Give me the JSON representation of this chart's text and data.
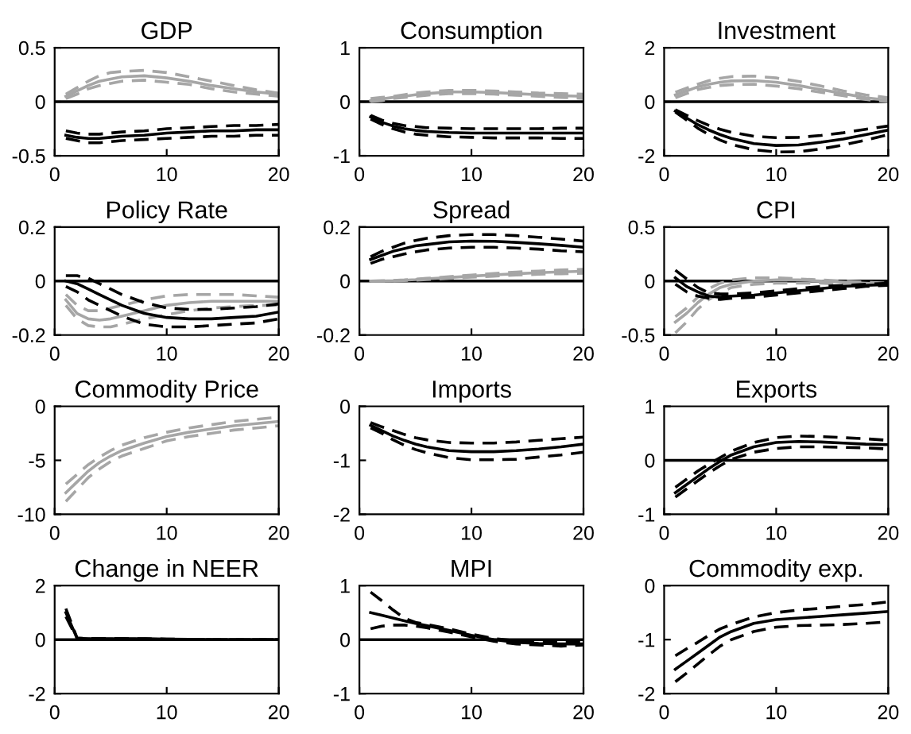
{
  "chart_data": [
    {
      "type": "line",
      "title": "GDP",
      "x": [
        1,
        2,
        3,
        4,
        5,
        6,
        8,
        10,
        12,
        14,
        16,
        18,
        20
      ],
      "xlim": [
        0,
        20
      ],
      "xticks": [
        0,
        10,
        20
      ],
      "ylim": [
        -0.5,
        0.5
      ],
      "yticks": [
        -0.5,
        0,
        0.5
      ],
      "ref_lines": [
        {
          "axis": "y",
          "value": 0,
          "color": "#000000"
        }
      ],
      "series": [
        {
          "color": "#a6a6a6",
          "line_style": "solid",
          "values": [
            0.05,
            0.1,
            0.15,
            0.19,
            0.21,
            0.23,
            0.24,
            0.22,
            0.19,
            0.15,
            0.12,
            0.09,
            0.07
          ]
        },
        {
          "color": "#a6a6a6",
          "line_style": "dashed",
          "values": [
            0.07,
            0.13,
            0.19,
            0.24,
            0.27,
            0.28,
            0.29,
            0.27,
            0.23,
            0.19,
            0.15,
            0.11,
            0.08
          ]
        },
        {
          "color": "#a6a6a6",
          "line_style": "dashed",
          "values": [
            0.03,
            0.07,
            0.12,
            0.15,
            0.17,
            0.19,
            0.2,
            0.18,
            0.16,
            0.12,
            0.09,
            0.07,
            0.05
          ]
        },
        {
          "color": "#000000",
          "line_style": "solid",
          "values": [
            -0.31,
            -0.33,
            -0.34,
            -0.34,
            -0.33,
            -0.32,
            -0.31,
            -0.29,
            -0.28,
            -0.27,
            -0.27,
            -0.26,
            -0.26
          ]
        },
        {
          "color": "#000000",
          "line_style": "dashed",
          "values": [
            -0.27,
            -0.29,
            -0.3,
            -0.3,
            -0.29,
            -0.28,
            -0.27,
            -0.25,
            -0.24,
            -0.23,
            -0.22,
            -0.22,
            -0.21
          ]
        },
        {
          "color": "#000000",
          "line_style": "dashed",
          "values": [
            -0.34,
            -0.36,
            -0.38,
            -0.38,
            -0.37,
            -0.36,
            -0.35,
            -0.34,
            -0.33,
            -0.32,
            -0.32,
            -0.31,
            -0.31
          ]
        }
      ]
    },
    {
      "type": "line",
      "title": "Consumption",
      "x": [
        1,
        2,
        3,
        4,
        5,
        6,
        8,
        10,
        12,
        14,
        16,
        18,
        20
      ],
      "xlim": [
        0,
        20
      ],
      "xticks": [
        0,
        10,
        20
      ],
      "ylim": [
        -1,
        1
      ],
      "yticks": [
        -1,
        0,
        1
      ],
      "ref_lines": [
        {
          "axis": "y",
          "value": 0,
          "color": "#000000"
        }
      ],
      "series": [
        {
          "color": "#a6a6a6",
          "line_style": "solid",
          "values": [
            0.02,
            0.05,
            0.08,
            0.1,
            0.13,
            0.15,
            0.18,
            0.18,
            0.17,
            0.15,
            0.13,
            0.11,
            0.1
          ]
        },
        {
          "color": "#a6a6a6",
          "line_style": "dashed",
          "values": [
            0.06,
            0.08,
            0.1,
            0.13,
            0.16,
            0.18,
            0.21,
            0.21,
            0.2,
            0.18,
            0.16,
            0.15,
            0.14
          ]
        },
        {
          "color": "#a6a6a6",
          "line_style": "dashed",
          "values": [
            0,
            0.02,
            0.06,
            0.08,
            0.1,
            0.12,
            0.15,
            0.15,
            0.14,
            0.12,
            0.1,
            0.08,
            0.06
          ]
        },
        {
          "color": "#000000",
          "line_style": "solid",
          "values": [
            -0.28,
            -0.38,
            -0.45,
            -0.5,
            -0.53,
            -0.55,
            -0.57,
            -0.58,
            -0.58,
            -0.58,
            -0.58,
            -0.58,
            -0.58
          ]
        },
        {
          "color": "#000000",
          "line_style": "dashed",
          "values": [
            -0.25,
            -0.34,
            -0.4,
            -0.44,
            -0.46,
            -0.48,
            -0.49,
            -0.5,
            -0.5,
            -0.5,
            -0.5,
            -0.49,
            -0.49
          ]
        },
        {
          "color": "#000000",
          "line_style": "dashed",
          "values": [
            -0.32,
            -0.42,
            -0.5,
            -0.56,
            -0.6,
            -0.62,
            -0.65,
            -0.66,
            -0.67,
            -0.67,
            -0.67,
            -0.68,
            -0.68
          ]
        }
      ]
    },
    {
      "type": "line",
      "title": "Investment",
      "x": [
        1,
        2,
        3,
        4,
        5,
        6,
        8,
        10,
        12,
        14,
        16,
        18,
        20
      ],
      "xlim": [
        0,
        20
      ],
      "xticks": [
        0,
        10,
        20
      ],
      "ylim": [
        -2,
        2
      ],
      "yticks": [
        -2,
        0,
        2
      ],
      "ref_lines": [
        {
          "axis": "y",
          "value": 0,
          "color": "#000000"
        }
      ],
      "series": [
        {
          "color": "#a6a6a6",
          "line_style": "solid",
          "values": [
            0.25,
            0.4,
            0.55,
            0.65,
            0.72,
            0.77,
            0.78,
            0.72,
            0.6,
            0.45,
            0.3,
            0.15,
            0.05
          ]
        },
        {
          "color": "#a6a6a6",
          "line_style": "dashed",
          "values": [
            0.35,
            0.5,
            0.65,
            0.78,
            0.87,
            0.93,
            0.95,
            0.88,
            0.75,
            0.58,
            0.4,
            0.25,
            0.15
          ]
        },
        {
          "color": "#a6a6a6",
          "line_style": "dashed",
          "values": [
            0.15,
            0.3,
            0.45,
            0.53,
            0.6,
            0.63,
            0.65,
            0.58,
            0.48,
            0.35,
            0.22,
            0.08,
            0
          ]
        },
        {
          "color": "#000000",
          "line_style": "solid",
          "values": [
            -0.35,
            -0.6,
            -0.85,
            -1.05,
            -1.22,
            -1.36,
            -1.55,
            -1.62,
            -1.6,
            -1.5,
            -1.38,
            -1.22,
            -1.05
          ]
        },
        {
          "color": "#000000",
          "line_style": "dashed",
          "values": [
            -0.3,
            -0.5,
            -0.7,
            -0.88,
            -1.02,
            -1.13,
            -1.28,
            -1.33,
            -1.32,
            -1.25,
            -1.15,
            -1.02,
            -0.9
          ]
        },
        {
          "color": "#000000",
          "line_style": "dashed",
          "values": [
            -0.38,
            -0.68,
            -0.98,
            -1.22,
            -1.42,
            -1.58,
            -1.78,
            -1.86,
            -1.85,
            -1.75,
            -1.6,
            -1.42,
            -1.22
          ]
        }
      ]
    },
    {
      "type": "line",
      "title": "Policy Rate",
      "x": [
        1,
        2,
        3,
        4,
        5,
        6,
        8,
        10,
        12,
        14,
        16,
        18,
        20
      ],
      "xlim": [
        0,
        20
      ],
      "xticks": [
        0,
        10,
        20
      ],
      "ylim": [
        -0.2,
        0.2
      ],
      "yticks": [
        -0.2,
        0,
        0.2
      ],
      "ref_lines": [
        {
          "axis": "y",
          "value": 0,
          "color": "#000000"
        }
      ],
      "series": [
        {
          "color": "#a6a6a6",
          "line_style": "solid",
          "values": [
            -0.07,
            -0.12,
            -0.14,
            -0.145,
            -0.14,
            -0.13,
            -0.11,
            -0.09,
            -0.08,
            -0.075,
            -0.075,
            -0.075,
            -0.075
          ]
        },
        {
          "color": "#a6a6a6",
          "line_style": "dashed",
          "values": [
            -0.05,
            -0.09,
            -0.11,
            -0.11,
            -0.1,
            -0.09,
            -0.07,
            -0.055,
            -0.05,
            -0.05,
            -0.05,
            -0.055,
            -0.06
          ]
        },
        {
          "color": "#a6a6a6",
          "line_style": "dashed",
          "values": [
            -0.09,
            -0.14,
            -0.165,
            -0.17,
            -0.17,
            -0.16,
            -0.14,
            -0.125,
            -0.11,
            -0.1,
            -0.095,
            -0.09,
            -0.09
          ]
        },
        {
          "color": "#000000",
          "line_style": "solid",
          "values": [
            0,
            -0.01,
            -0.03,
            -0.05,
            -0.07,
            -0.09,
            -0.12,
            -0.135,
            -0.14,
            -0.14,
            -0.135,
            -0.13,
            -0.115
          ]
        },
        {
          "color": "#000000",
          "line_style": "dashed",
          "values": [
            0.02,
            0.02,
            0.01,
            -0.01,
            -0.03,
            -0.05,
            -0.08,
            -0.1,
            -0.105,
            -0.105,
            -0.1,
            -0.095,
            -0.085
          ]
        },
        {
          "color": "#000000",
          "line_style": "dashed",
          "values": [
            -0.02,
            -0.04,
            -0.07,
            -0.09,
            -0.11,
            -0.13,
            -0.16,
            -0.17,
            -0.17,
            -0.165,
            -0.16,
            -0.155,
            -0.14
          ]
        }
      ]
    },
    {
      "type": "line",
      "title": "Spread",
      "x": [
        1,
        2,
        3,
        4,
        5,
        6,
        8,
        10,
        12,
        14,
        16,
        18,
        20
      ],
      "xlim": [
        0,
        20
      ],
      "xticks": [
        0,
        10,
        20
      ],
      "ylim": [
        -0.2,
        0.2
      ],
      "yticks": [
        -0.2,
        0,
        0.2
      ],
      "ref_lines": [
        {
          "axis": "y",
          "value": 0,
          "color": "#000000"
        }
      ],
      "series": [
        {
          "color": "#a6a6a6",
          "line_style": "solid",
          "values": [
            0,
            0,
            0.001,
            0.003,
            0.005,
            0.008,
            0.013,
            0.018,
            0.023,
            0.027,
            0.031,
            0.034,
            0.036
          ]
        },
        {
          "color": "#a6a6a6",
          "line_style": "dashed",
          "values": [
            0,
            0.001,
            0.002,
            0.004,
            0.007,
            0.01,
            0.016,
            0.022,
            0.028,
            0.033,
            0.037,
            0.041,
            0.043
          ]
        },
        {
          "color": "#a6a6a6",
          "line_style": "dashed",
          "values": [
            0,
            0,
            0,
            0.002,
            0.003,
            0.005,
            0.01,
            0.014,
            0.018,
            0.022,
            0.025,
            0.027,
            0.029
          ]
        },
        {
          "color": "#000000",
          "line_style": "solid",
          "values": [
            0.08,
            0.095,
            0.11,
            0.12,
            0.13,
            0.135,
            0.145,
            0.148,
            0.147,
            0.143,
            0.138,
            0.132,
            0.125
          ]
        },
        {
          "color": "#000000",
          "line_style": "dashed",
          "values": [
            0.09,
            0.11,
            0.125,
            0.14,
            0.15,
            0.158,
            0.168,
            0.172,
            0.172,
            0.168,
            0.162,
            0.155,
            0.148
          ]
        },
        {
          "color": "#000000",
          "line_style": "dashed",
          "values": [
            0.065,
            0.08,
            0.09,
            0.1,
            0.108,
            0.115,
            0.122,
            0.125,
            0.125,
            0.122,
            0.118,
            0.112,
            0.108
          ]
        }
      ]
    },
    {
      "type": "line",
      "title": "CPI",
      "x": [
        1,
        2,
        3,
        4,
        5,
        6,
        8,
        10,
        12,
        14,
        16,
        18,
        20
      ],
      "xlim": [
        0,
        20
      ],
      "xticks": [
        0,
        10,
        20
      ],
      "ylim": [
        -0.5,
        0.5
      ],
      "yticks": [
        -0.5,
        0,
        0.5
      ],
      "ref_lines": [
        {
          "axis": "y",
          "value": 0,
          "color": "#000000"
        }
      ],
      "series": [
        {
          "color": "#a6a6a6",
          "line_style": "solid",
          "values": [
            -0.38,
            -0.3,
            -0.2,
            -0.12,
            -0.06,
            -0.03,
            0,
            0.01,
            0.01,
            0,
            -0.01,
            -0.02,
            -0.03
          ]
        },
        {
          "color": "#a6a6a6",
          "line_style": "dashed",
          "values": [
            -0.33,
            -0.25,
            -0.15,
            -0.07,
            -0.02,
            0.01,
            0.03,
            0.03,
            0.02,
            0.01,
            0,
            -0.01,
            -0.02
          ]
        },
        {
          "color": "#a6a6a6",
          "line_style": "dashed",
          "values": [
            -0.48,
            -0.38,
            -0.26,
            -0.17,
            -0.11,
            -0.06,
            -0.03,
            -0.02,
            -0.02,
            -0.02,
            -0.03,
            -0.04,
            -0.04
          ]
        },
        {
          "color": "#000000",
          "line_style": "solid",
          "values": [
            0.03,
            -0.05,
            -0.1,
            -0.14,
            -0.15,
            -0.14,
            -0.13,
            -0.11,
            -0.09,
            -0.07,
            -0.05,
            -0.04,
            -0.03
          ]
        },
        {
          "color": "#000000",
          "line_style": "dashed",
          "values": [
            0.1,
            0.02,
            -0.06,
            -0.11,
            -0.12,
            -0.12,
            -0.11,
            -0.09,
            -0.07,
            -0.05,
            -0.04,
            -0.03,
            -0.02
          ]
        },
        {
          "color": "#000000",
          "line_style": "dashed",
          "values": [
            -0.03,
            -0.1,
            -0.14,
            -0.16,
            -0.17,
            -0.16,
            -0.15,
            -0.13,
            -0.11,
            -0.09,
            -0.07,
            -0.05,
            -0.04
          ]
        }
      ]
    },
    {
      "type": "line",
      "title": "Commodity Price",
      "x": [
        1,
        2,
        3,
        4,
        5,
        6,
        8,
        10,
        12,
        14,
        16,
        18,
        20
      ],
      "xlim": [
        0,
        20
      ],
      "xticks": [
        0,
        10,
        20
      ],
      "ylim": [
        -10,
        0
      ],
      "yticks": [
        -10,
        -5,
        0
      ],
      "series": [
        {
          "color": "#a6a6a6",
          "line_style": "solid",
          "values": [
            -8,
            -7,
            -6,
            -5.2,
            -4.6,
            -4.1,
            -3.4,
            -2.8,
            -2.4,
            -2.1,
            -1.8,
            -1.6,
            -1.4
          ]
        },
        {
          "color": "#a6a6a6",
          "line_style": "dashed",
          "values": [
            -7.2,
            -6.3,
            -5.4,
            -4.7,
            -4.1,
            -3.6,
            -2.9,
            -2.4,
            -2,
            -1.7,
            -1.4,
            -1.2,
            -1
          ]
        },
        {
          "color": "#a6a6a6",
          "line_style": "dashed",
          "values": [
            -8.8,
            -7.7,
            -6.6,
            -5.8,
            -5.1,
            -4.6,
            -3.9,
            -3.2,
            -2.8,
            -2.5,
            -2.2,
            -2,
            -1.8
          ]
        }
      ]
    },
    {
      "type": "line",
      "title": "Imports",
      "x": [
        1,
        2,
        3,
        4,
        5,
        6,
        8,
        10,
        12,
        14,
        16,
        18,
        20
      ],
      "xlim": [
        0,
        20
      ],
      "xticks": [
        0,
        10,
        20
      ],
      "ylim": [
        -2,
        0
      ],
      "yticks": [
        -2,
        -1,
        0
      ],
      "series": [
        {
          "color": "#000000",
          "line_style": "solid",
          "values": [
            -0.35,
            -0.45,
            -0.55,
            -0.63,
            -0.7,
            -0.75,
            -0.82,
            -0.84,
            -0.84,
            -0.82,
            -0.79,
            -0.75,
            -0.7
          ]
        },
        {
          "color": "#000000",
          "line_style": "dashed",
          "values": [
            -0.3,
            -0.38,
            -0.45,
            -0.52,
            -0.58,
            -0.62,
            -0.67,
            -0.68,
            -0.68,
            -0.66,
            -0.63,
            -0.6,
            -0.57
          ]
        },
        {
          "color": "#000000",
          "line_style": "dashed",
          "values": [
            -0.4,
            -0.5,
            -0.62,
            -0.72,
            -0.8,
            -0.86,
            -0.95,
            -0.99,
            -0.99,
            -0.98,
            -0.94,
            -0.9,
            -0.85
          ]
        }
      ]
    },
    {
      "type": "line",
      "title": "Exports",
      "x": [
        1,
        2,
        3,
        4,
        5,
        6,
        8,
        10,
        12,
        14,
        16,
        18,
        20
      ],
      "xlim": [
        0,
        20
      ],
      "xticks": [
        0,
        10,
        20
      ],
      "ylim": [
        -1,
        1
      ],
      "yticks": [
        -1,
        0,
        1
      ],
      "ref_lines": [
        {
          "axis": "y",
          "value": 0,
          "color": "#000000"
        }
      ],
      "series": [
        {
          "color": "#000000",
          "line_style": "solid",
          "values": [
            -0.6,
            -0.45,
            -0.3,
            -0.15,
            -0.02,
            0.1,
            0.25,
            0.33,
            0.35,
            0.34,
            0.32,
            0.3,
            0.29
          ]
        },
        {
          "color": "#000000",
          "line_style": "dashed",
          "values": [
            -0.5,
            -0.35,
            -0.2,
            -0.07,
            0.05,
            0.17,
            0.33,
            0.42,
            0.45,
            0.44,
            0.42,
            0.4,
            0.37
          ]
        },
        {
          "color": "#000000",
          "line_style": "dashed",
          "values": [
            -0.68,
            -0.53,
            -0.38,
            -0.23,
            -0.1,
            0.02,
            0.15,
            0.22,
            0.25,
            0.25,
            0.24,
            0.23,
            0.21
          ]
        }
      ]
    },
    {
      "type": "line",
      "title": "Change in NEER",
      "x": [
        1,
        2,
        3,
        4,
        5,
        6,
        8,
        10,
        12,
        14,
        16,
        18,
        20
      ],
      "xlim": [
        0,
        20
      ],
      "xticks": [
        0,
        10,
        20
      ],
      "ylim": [
        -2,
        2
      ],
      "yticks": [
        -2,
        0,
        2
      ],
      "ref_lines": [
        {
          "axis": "y",
          "value": 0,
          "color": "#000000"
        }
      ],
      "series": [
        {
          "color": "#000000",
          "line_style": "solid",
          "values": [
            1.0,
            0.05,
            0.03,
            0.03,
            0.03,
            0.03,
            0.03,
            0.02,
            0.01,
            0,
            0,
            0,
            0
          ]
        },
        {
          "color": "#000000",
          "line_style": "dashed",
          "values": [
            1.15,
            0.06,
            0.04,
            0.04,
            0.04,
            0.04,
            0.03,
            0.02,
            0.01,
            0,
            0,
            0,
            0
          ]
        },
        {
          "color": "#000000",
          "line_style": "dashed",
          "values": [
            0.85,
            0.04,
            0.02,
            0.02,
            0.02,
            0.02,
            0.02,
            0.01,
            0,
            0,
            0,
            0,
            0
          ]
        }
      ]
    },
    {
      "type": "line",
      "title": "MPI",
      "x": [
        1,
        2,
        3,
        4,
        5,
        6,
        8,
        10,
        12,
        14,
        16,
        18,
        20
      ],
      "xlim": [
        0,
        20
      ],
      "xticks": [
        0,
        10,
        20
      ],
      "ylim": [
        -1,
        1
      ],
      "yticks": [
        -1,
        0,
        1
      ],
      "ref_lines": [
        {
          "axis": "y",
          "value": 0,
          "color": "#000000"
        }
      ],
      "series": [
        {
          "color": "#000000",
          "line_style": "solid",
          "values": [
            0.5,
            0.45,
            0.4,
            0.35,
            0.3,
            0.26,
            0.17,
            0.08,
            0,
            -0.05,
            -0.07,
            -0.08,
            -0.08
          ]
        },
        {
          "color": "#000000",
          "line_style": "dashed",
          "values": [
            0.88,
            0.72,
            0.55,
            0.4,
            0.32,
            0.28,
            0.2,
            0.1,
            0.02,
            -0.02,
            -0.05,
            -0.05,
            -0.05
          ]
        },
        {
          "color": "#000000",
          "line_style": "dashed",
          "values": [
            0.2,
            0.25,
            0.27,
            0.27,
            0.25,
            0.22,
            0.14,
            0.05,
            -0.03,
            -0.08,
            -0.1,
            -0.12,
            -0.1
          ]
        }
      ]
    },
    {
      "type": "line",
      "title": "Commodity exp.",
      "x": [
        1,
        2,
        3,
        4,
        5,
        6,
        8,
        10,
        12,
        14,
        16,
        18,
        20
      ],
      "xlim": [
        0,
        20
      ],
      "xticks": [
        0,
        10,
        20
      ],
      "ylim": [
        -2,
        0
      ],
      "yticks": [
        -2,
        -1,
        0
      ],
      "series": [
        {
          "color": "#000000",
          "line_style": "solid",
          "values": [
            -1.55,
            -1.4,
            -1.25,
            -1.1,
            -0.95,
            -0.85,
            -0.7,
            -0.63,
            -0.6,
            -0.57,
            -0.54,
            -0.51,
            -0.48
          ]
        },
        {
          "color": "#000000",
          "line_style": "dashed",
          "values": [
            -1.3,
            -1.17,
            -1.05,
            -0.92,
            -0.8,
            -0.72,
            -0.58,
            -0.5,
            -0.45,
            -0.42,
            -0.38,
            -0.35,
            -0.3
          ]
        },
        {
          "color": "#000000",
          "line_style": "dashed",
          "values": [
            -1.78,
            -1.62,
            -1.45,
            -1.28,
            -1.12,
            -1.0,
            -0.85,
            -0.77,
            -0.74,
            -0.73,
            -0.72,
            -0.7,
            -0.67
          ]
        }
      ]
    }
  ]
}
